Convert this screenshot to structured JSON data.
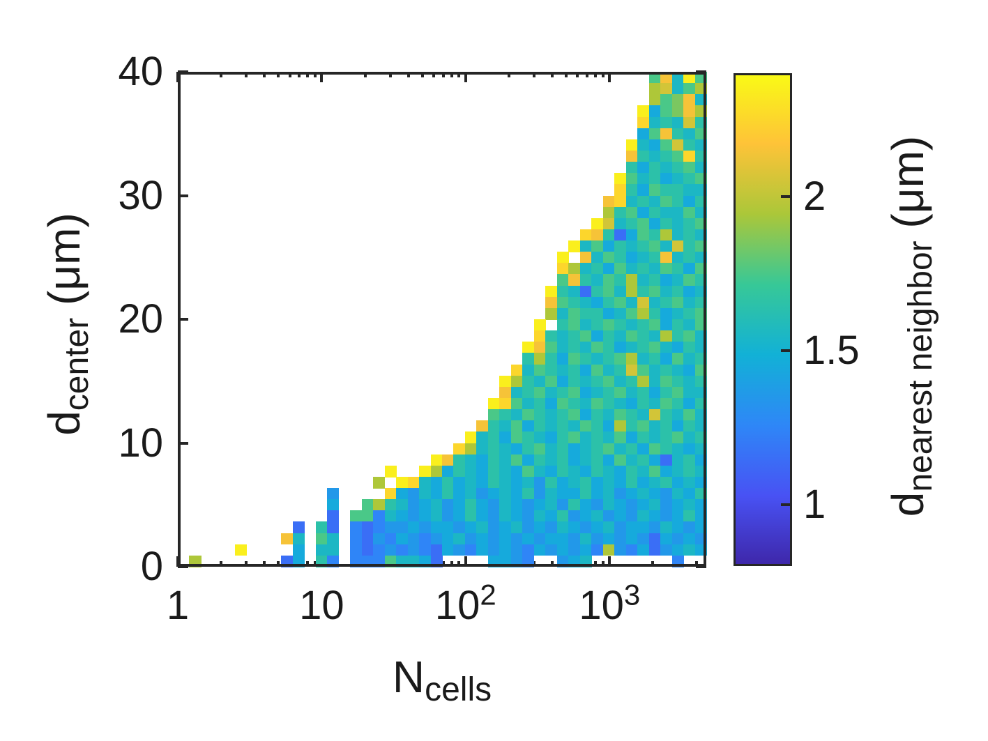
{
  "figure": {
    "background": "#ffffff",
    "text_color": "#1a1a1a",
    "axis_color": "#262626"
  },
  "chart_data": {
    "type": "heatmap",
    "title": "",
    "x_axis": {
      "label_base": "N",
      "label_sub": "cells",
      "scale": "log10",
      "range": [
        1,
        4700
      ],
      "major_ticks": [
        {
          "value": 1,
          "base": "1",
          "exp": ""
        },
        {
          "value": 10,
          "base": "10",
          "exp": ""
        },
        {
          "value": 100,
          "base": "10",
          "exp": "2"
        },
        {
          "value": 1000,
          "base": "10",
          "exp": "3"
        }
      ],
      "minor_tick_multipliers": [
        2,
        3,
        4,
        5,
        6,
        7,
        8,
        9
      ],
      "minor_tick_decades": [
        1,
        10,
        100,
        1000
      ]
    },
    "y_axis": {
      "label_base": "d",
      "label_sub": "center",
      "label_unit": " (μm)",
      "scale": "linear",
      "range": [
        0,
        40
      ],
      "ticks": [
        {
          "value": 0,
          "label": "0"
        },
        {
          "value": 10,
          "label": "10"
        },
        {
          "value": 20,
          "label": "20"
        },
        {
          "value": 30,
          "label": "30"
        },
        {
          "value": 40,
          "label": "40"
        }
      ]
    },
    "colorbar": {
      "label_base": "d",
      "label_sub": "nearest neighbor",
      "label_unit": " (μm)",
      "range": [
        0.8,
        2.4
      ],
      "ticks": [
        {
          "value": 1,
          "label": "1"
        },
        {
          "value": 1.5,
          "label": "1.5"
        },
        {
          "value": 2,
          "label": "2"
        }
      ],
      "gradient_stops": [
        "#3e26a8",
        "#4852f4",
        "#2e87f7",
        "#12b1d6",
        "#37c897",
        "#abc739",
        "#fec338",
        "#f9fb15"
      ]
    },
    "grid": {
      "n_cols": 46,
      "n_rows": 44,
      "value_min": 0.8,
      "value_max": 2.4,
      "levels": 16,
      "empty_char": ".",
      "note": "rows listed top-to-bottom; each row has start column s and hex chars 0-f mapping linearly to value range; '.' = no data"
    },
    "palette16": [
      "#4030b9",
      "#4543da",
      "#4557f4",
      "#3a6ef6",
      "#2f85f7",
      "#2298e9",
      "#16aadc",
      "#1cb7c4",
      "#2cc1a9",
      "#4ac888",
      "#7bc760",
      "#aec739",
      "#d2c538",
      "#f6c338",
      "#fcd62c",
      "#faef1d"
    ],
    "matrix_rows": [
      {
        "s": 41,
        "v": "9d7f9"
      },
      {
        "s": 41,
        "v": "bc79b"
      },
      {
        "s": 41,
        "v": "b9ad7"
      },
      {
        "s": 40,
        "v": "f69adb"
      },
      {
        "s": 40,
        "v": "e787c8"
      },
      {
        "s": 40,
        "v": "69d879"
      },
      {
        "s": 39,
        "v": "f769c87"
      },
      {
        "s": 39,
        "v": "d8789e8"
      },
      {
        "s": 39,
        "v": "8687897"
      },
      {
        "s": 38,
        "v": "f9786789"
      },
      {
        "s": 38,
        "v": "e8698877"
      },
      {
        "s": 37,
        "v": "de7879868"
      },
      {
        "s": 37,
        "v": "b89687797"
      },
      {
        "s": 36,
        "v": "fc78968789"
      },
      {
        "s": 35,
        "v": "ed83698b787"
      },
      {
        "s": 34,
        "v": "f79687897c89"
      },
      {
        "s": 33,
        "v": "f.d798678d787"
      },
      {
        "s": 33,
        "v": "eb78697879869"
      },
      {
        "s": 33,
        "v": "9d8798b786798"
      },
      {
        "s": 32,
        "v": "f873897b897867"
      },
      {
        "s": 32,
        "v": "d9876897c78978"
      },
      {
        "s": 32,
        "v": "b7988679b86789"
      },
      {
        "s": 31,
        "v": "f.8978987896879"
      },
      {
        "s": 31,
        "v": "e8789687987b897"
      },
      {
        "s": 30,
        "v": "fd97879867897687"
      },
      {
        "s": 30,
        "v": "8b8698789b786978"
      },
      {
        "s": 29,
        "v": "e798786978c978769"
      },
      {
        "s": 28,
        "v": "fb8796878978b79878"
      },
      {
        "s": 28,
        "v": "d78978967897868977"
      },
      {
        "s": 27,
        "v": "fe97869879876879868"
      },
      {
        "s": 27,
        "v": "98798789687987c8797"
      },
      {
        "s": 26,
        "v": "d87968787986b8978687"
      },
      {
        "s": 25,
        "v": "f78698768978796878978"
      },
      {
        "s": 24,
        "v": "eb78768978678978698767"
      },
      {
        "s": 22,
        "v": "fd8768796878678697863786"
      },
      {
        "s": 18,
        "v": "f..fb68768769768768768796787"
      },
      {
        "s": 17,
        "v": "b.fe7686768767586786768678676"
      },
      {
        "s": 13,
        "v": "5....e657686756768576686756765768"
      },
      {
        "s": 13,
        "v": "6..9b8756756865765675865765675676"
      },
      {
        "s": 13,
        "v": "3.9947656756865765768567565765686"
      },
      {
        "s": 10,
        "v": "3.83.4345565665675675657656756657656"
      },
      {
        "s": 9,
        "v": "d7.97.4354654567565656566575656536565"
      },
      {
        "s": 5,
        "v": "f....6.77.4345454365465654656564b54635676"
      },
      {
        "s": 1,
        "v": "b.......36.84.44497763....6654..567.......4"
      }
    ]
  }
}
